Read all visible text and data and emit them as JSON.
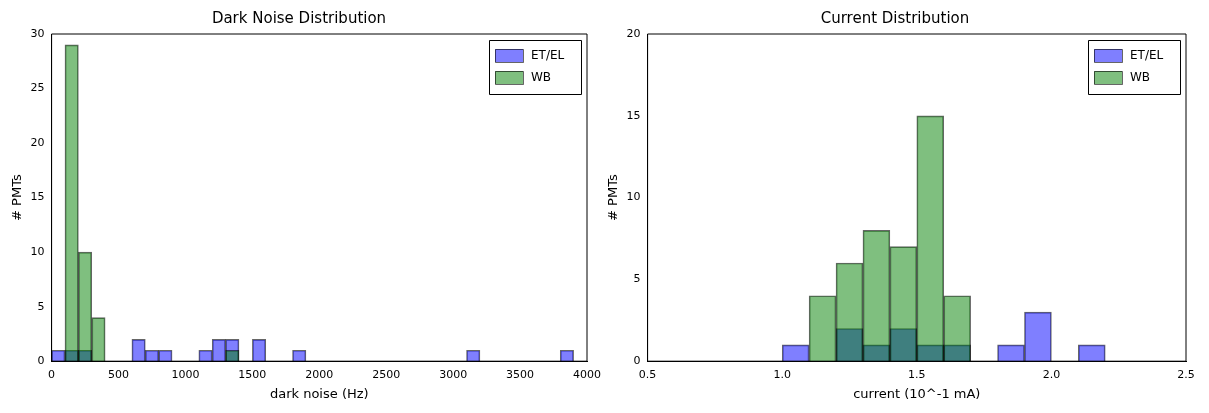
{
  "chart_data": [
    {
      "type": "histogram",
      "title": "Dark Noise Distribution",
      "xlabel": "dark noise (Hz)",
      "ylabel": "# PMTs",
      "bins": [
        0,
        100,
        200,
        300,
        400,
        500,
        600,
        700,
        800,
        900,
        1000,
        1100,
        1200,
        1300,
        1400,
        1500,
        1600,
        1700,
        1800,
        1900,
        2000,
        2100,
        2200,
        2300,
        2400,
        2500,
        2600,
        2700,
        2800,
        2900,
        3000,
        3100,
        3200,
        3300,
        3400,
        3500,
        3600,
        3700,
        3800,
        3900
      ],
      "series": [
        {
          "name": "ET/EL",
          "color": "#7f7fff",
          "values": [
            1,
            1,
            1,
            0,
            0,
            0,
            2,
            1,
            1,
            0,
            0,
            1,
            2,
            2,
            0,
            2,
            0,
            0,
            1,
            0,
            0,
            0,
            0,
            0,
            0,
            0,
            0,
            0,
            0,
            0,
            0,
            1,
            0,
            0,
            0,
            0,
            0,
            0,
            1
          ]
        },
        {
          "name": "WB",
          "color": "#7fbf7f",
          "values": [
            0,
            29,
            10,
            4,
            0,
            0,
            0,
            0,
            0,
            0,
            0,
            0,
            0,
            1,
            0,
            0,
            0,
            0,
            0,
            0,
            0,
            0,
            0,
            0,
            0,
            0,
            0,
            0,
            0,
            0,
            0,
            0,
            0,
            0,
            0,
            0,
            0,
            0,
            0
          ]
        }
      ],
      "xlim": [
        0,
        4000
      ],
      "xticks": [
        0,
        500,
        1000,
        1500,
        2000,
        2500,
        3000,
        3500,
        4000
      ],
      "ylim": [
        0,
        30
      ],
      "yticks": [
        0,
        5,
        10,
        15,
        20,
        25,
        30
      ],
      "grid": false,
      "legend": "top right"
    },
    {
      "type": "histogram",
      "title": "Current Distribution",
      "xlabel": "current (10^-1 mA)",
      "ylabel": "# PMTs",
      "bins": [
        0.5,
        0.6,
        0.7,
        0.8,
        0.9,
        1.0,
        1.1,
        1.2,
        1.3,
        1.4,
        1.5,
        1.6,
        1.7,
        1.8,
        1.9,
        2.0,
        2.1,
        2.2
      ],
      "series": [
        {
          "name": "ET/EL",
          "color": "#7f7fff",
          "values": [
            0,
            0,
            0,
            0,
            0,
            1,
            0,
            2,
            1,
            2,
            1,
            1,
            0,
            1,
            3,
            0,
            1
          ]
        },
        {
          "name": "WB",
          "color": "#7fbf7f",
          "values": [
            0,
            0,
            0,
            0,
            0,
            0,
            4,
            6,
            8,
            7,
            15,
            4,
            0,
            0,
            0,
            0,
            0
          ]
        }
      ],
      "xlim": [
        0.5,
        2.5
      ],
      "xticks": [
        {
          "value": 0.5,
          "label": "0.5"
        },
        {
          "value": 1,
          "label": "1.0"
        },
        {
          "value": 1.5,
          "label": "1.5"
        },
        {
          "value": 2,
          "label": "2.0"
        },
        {
          "value": 2.5,
          "label": "2.5"
        }
      ],
      "ylim": [
        0,
        20
      ],
      "yticks": [
        0,
        5,
        10,
        15,
        20
      ],
      "grid": false,
      "legend": "top right"
    }
  ]
}
